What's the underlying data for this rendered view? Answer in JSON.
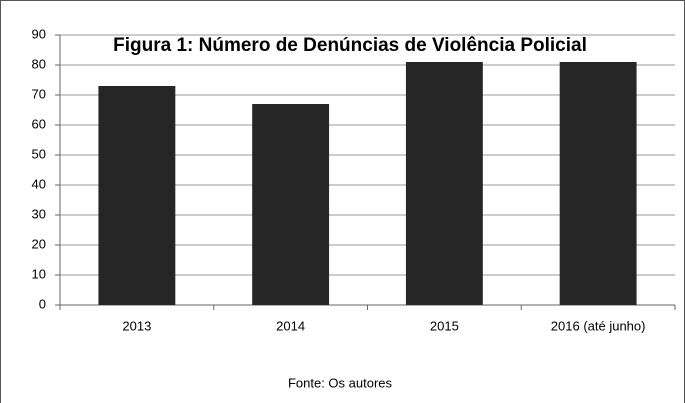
{
  "chart_data": {
    "type": "bar",
    "title": "Figura 1: Número de Denúncias de Violência Policial",
    "categories": [
      "2013",
      "2014",
      "2015",
      "2016 (até junho)"
    ],
    "values": [
      73,
      67,
      81,
      81
    ],
    "color": "#262626",
    "ylim": [
      0,
      90
    ],
    "yticks": [
      0,
      10,
      20,
      30,
      40,
      50,
      60,
      70,
      80,
      90
    ],
    "grid": true,
    "source": "Fonte: Os autores"
  }
}
